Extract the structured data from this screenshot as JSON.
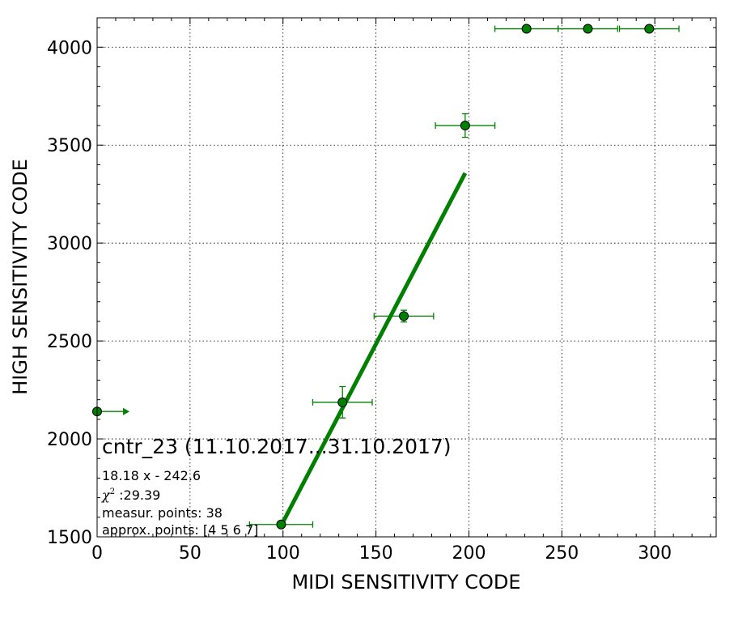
{
  "chart_data": {
    "type": "scatter",
    "title": "cntr_23 (11.10.2017...31.10.2017)",
    "xlabel": "MIDI SENSITIVITY CODE",
    "ylabel": "HIGH SENSITIVITY CODE",
    "xlim": [
      0,
      333
    ],
    "ylim": [
      1500,
      4150
    ],
    "xticks": [
      0,
      50,
      100,
      150,
      200,
      250,
      300
    ],
    "yticks": [
      1500,
      2000,
      2500,
      3000,
      3500,
      4000
    ],
    "xtick_labels": [
      "0",
      "50",
      "100",
      "150",
      "200",
      "250",
      "300"
    ],
    "ytick_labels": [
      "1500",
      "2000",
      "2500",
      "3000",
      "3500",
      "4000"
    ],
    "grid": true,
    "colors": {
      "series": "#008000",
      "marker_edge": "#000000"
    },
    "points": [
      {
        "x": 99,
        "y": 1563,
        "xerr": 17,
        "yerr": 0
      },
      {
        "x": 132,
        "y": 2187,
        "xerr": 16,
        "yerr": 80
      },
      {
        "x": 165,
        "y": 2627,
        "xerr": 16,
        "yerr": 30
      },
      {
        "x": 198,
        "y": 3600,
        "xerr": 16,
        "yerr": 60
      },
      {
        "x": 231,
        "y": 4094,
        "xerr": 17,
        "yerr": 0
      },
      {
        "x": 264,
        "y": 4094,
        "xerr": 16,
        "yerr": 0
      },
      {
        "x": 297,
        "y": 4094,
        "xerr": 16,
        "yerr": 0
      }
    ],
    "limit_point": {
      "x": 0,
      "y": 2140,
      "arrow_to_x": 17
    },
    "fit_line": {
      "slope": 18.18,
      "intercept": -242.6,
      "x_range": [
        99,
        198
      ]
    },
    "annotations": {
      "equation": "18.18 x - 242.6",
      "chi_symbol": "χ",
      "chi_power": "2",
      "chi_value": " :29.39",
      "measured": "measur. points: 38",
      "approx": "approx. points: [4 5 6 7]"
    }
  }
}
